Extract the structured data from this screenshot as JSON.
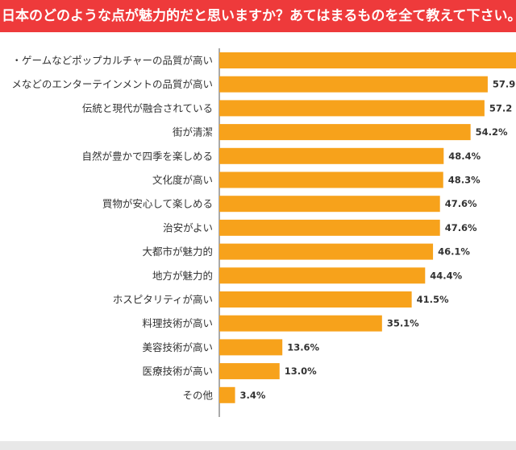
{
  "header": {
    "title": "日本のどのような点が魅力的だと思いますか？あてはまるものを全て教えて下さい。（複数回答）"
  },
  "colors": {
    "header_bg": "#ee3a3b",
    "bar": "#f7a21b",
    "axis": "#555555"
  },
  "chart_data": {
    "type": "bar",
    "orientation": "horizontal",
    "title": "日本のどのような点が魅力的だと思いますか？あてはまるものを全て教えて下さい。（複数回答）",
    "xlabel": "",
    "ylabel": "",
    "xlim": [
      0,
      64
    ],
    "categories": [
      "・ゲームなどポップカルチャーの品質が高い",
      "メなどのエンターテインメントの品質が高い",
      "伝統と現代が融合されている",
      "街が清潔",
      "自然が豊かで四季を楽しめる",
      "文化度が高い",
      "買物が安心して楽しめる",
      "治安がよい",
      "大都市が魅力的",
      "地方が魅力的",
      "ホスピタリティが高い",
      "料理技術が高い",
      "美容技術が高い",
      "医療技術が高い",
      "その他"
    ],
    "values": [
      64.0,
      57.9,
      57.2,
      54.2,
      48.4,
      48.3,
      47.6,
      47.6,
      46.1,
      44.4,
      41.5,
      35.1,
      13.6,
      13.0,
      3.4
    ],
    "value_labels": [
      "",
      "57.9",
      "57.2",
      "54.2%",
      "48.4%",
      "48.3%",
      "47.6%",
      "47.6%",
      "46.1%",
      "44.4%",
      "41.5%",
      "35.1%",
      "13.6%",
      "13.0%",
      "3.4%"
    ]
  }
}
